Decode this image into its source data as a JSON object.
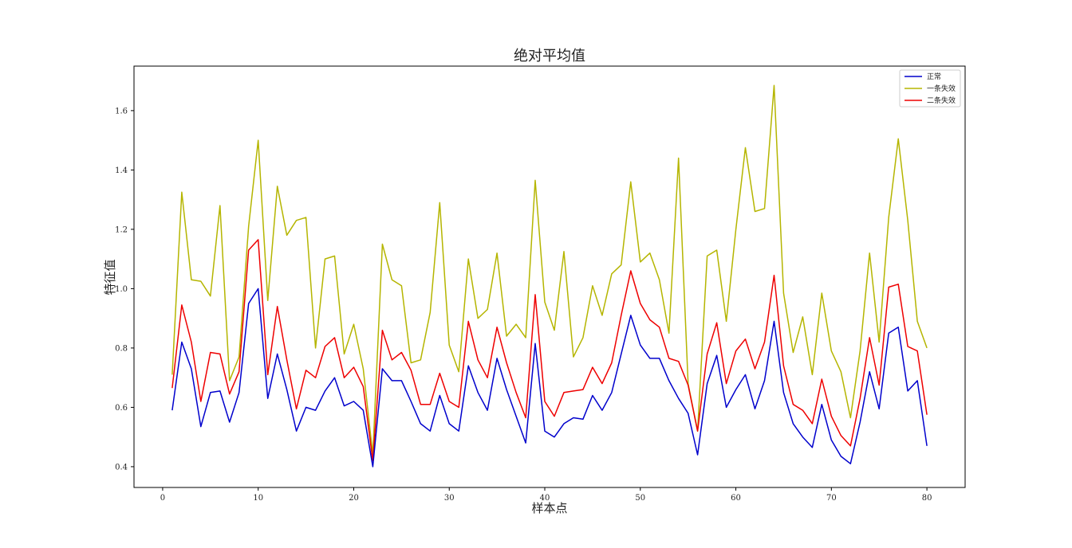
{
  "chart_data": {
    "type": "line",
    "title": "绝对平均值",
    "xlabel": "样本点",
    "ylabel": "特征值",
    "xlim": [
      -3,
      84
    ],
    "ylim": [
      0.33,
      1.75
    ],
    "xticks": [
      0,
      10,
      20,
      30,
      40,
      50,
      60,
      70,
      80
    ],
    "yticks": [
      0.4,
      0.6,
      0.8,
      1.0,
      1.2,
      1.4,
      1.6
    ],
    "grid": false,
    "legend_position": "top-right",
    "x": [
      1,
      2,
      3,
      4,
      5,
      6,
      7,
      8,
      9,
      10,
      11,
      12,
      13,
      14,
      15,
      16,
      17,
      18,
      19,
      20,
      21,
      22,
      23,
      24,
      25,
      26,
      27,
      28,
      29,
      30,
      31,
      32,
      33,
      34,
      35,
      36,
      37,
      38,
      39,
      40,
      41,
      42,
      43,
      44,
      45,
      46,
      47,
      48,
      49,
      50,
      51,
      52,
      53,
      54,
      55,
      56,
      57,
      58,
      59,
      60,
      61,
      62,
      63,
      64,
      65,
      66,
      67,
      68,
      69,
      70,
      71,
      72,
      73,
      74,
      75,
      76,
      77,
      78,
      79,
      80
    ],
    "series": [
      {
        "name": "正常",
        "color": "#0000cc",
        "values": [
          0.59,
          0.82,
          0.73,
          0.535,
          0.65,
          0.655,
          0.55,
          0.65,
          0.95,
          1.0,
          0.63,
          0.78,
          0.66,
          0.52,
          0.6,
          0.59,
          0.655,
          0.7,
          0.605,
          0.62,
          0.59,
          0.4,
          0.73,
          0.69,
          0.69,
          0.62,
          0.545,
          0.52,
          0.64,
          0.545,
          0.52,
          0.74,
          0.65,
          0.59,
          0.765,
          0.66,
          0.57,
          0.48,
          0.815,
          0.52,
          0.5,
          0.545,
          0.565,
          0.56,
          0.64,
          0.59,
          0.65,
          0.78,
          0.91,
          0.81,
          0.765,
          0.765,
          0.69,
          0.63,
          0.58,
          0.44,
          0.68,
          0.775,
          0.6,
          0.66,
          0.71,
          0.595,
          0.69,
          0.89,
          0.65,
          0.545,
          0.5,
          0.465,
          0.61,
          0.49,
          0.435,
          0.41,
          0.55,
          0.72,
          0.595,
          0.85,
          0.87,
          0.655,
          0.69,
          0.47
        ]
      },
      {
        "name": "一条失效",
        "color": "#b5b500",
        "values": [
          0.71,
          1.325,
          1.03,
          1.025,
          0.975,
          1.28,
          0.69,
          0.77,
          1.21,
          1.5,
          0.96,
          1.345,
          1.18,
          1.23,
          1.24,
          0.8,
          1.1,
          1.11,
          0.78,
          0.88,
          0.73,
          0.44,
          1.15,
          1.03,
          1.01,
          0.75,
          0.76,
          0.92,
          1.29,
          0.81,
          0.72,
          1.1,
          0.9,
          0.93,
          1.12,
          0.84,
          0.88,
          0.835,
          1.365,
          0.955,
          0.86,
          1.125,
          0.77,
          0.835,
          1.01,
          0.91,
          1.05,
          1.08,
          1.36,
          1.09,
          1.12,
          1.03,
          0.85,
          1.44,
          0.68,
          0.52,
          1.11,
          1.13,
          0.89,
          1.2,
          1.475,
          1.26,
          1.27,
          1.685,
          0.985,
          0.785,
          0.905,
          0.71,
          0.985,
          0.79,
          0.72,
          0.565,
          0.79,
          1.12,
          0.82,
          1.24,
          1.505,
          1.23,
          0.89,
          0.8
        ]
      },
      {
        "name": "二条失效",
        "color": "#ee0000",
        "values": [
          0.665,
          0.945,
          0.82,
          0.62,
          0.785,
          0.78,
          0.645,
          0.72,
          1.13,
          1.165,
          0.71,
          0.94,
          0.76,
          0.595,
          0.725,
          0.7,
          0.805,
          0.835,
          0.7,
          0.735,
          0.67,
          0.42,
          0.86,
          0.76,
          0.785,
          0.725,
          0.61,
          0.61,
          0.715,
          0.62,
          0.6,
          0.89,
          0.76,
          0.7,
          0.87,
          0.75,
          0.65,
          0.565,
          0.98,
          0.62,
          0.57,
          0.65,
          0.655,
          0.66,
          0.735,
          0.68,
          0.75,
          0.91,
          1.06,
          0.95,
          0.895,
          0.87,
          0.765,
          0.755,
          0.675,
          0.52,
          0.78,
          0.885,
          0.68,
          0.79,
          0.83,
          0.73,
          0.82,
          1.045,
          0.74,
          0.61,
          0.59,
          0.545,
          0.695,
          0.57,
          0.505,
          0.47,
          0.63,
          0.835,
          0.675,
          1.005,
          1.015,
          0.805,
          0.79,
          0.575
        ]
      }
    ]
  }
}
